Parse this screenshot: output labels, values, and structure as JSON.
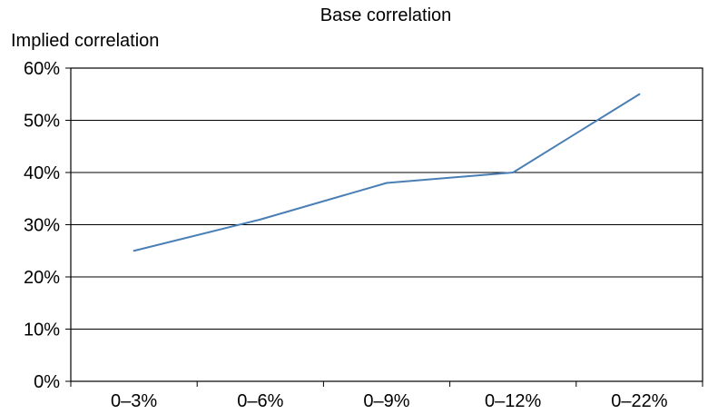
{
  "chart_data": {
    "type": "line",
    "title": "Base correlation",
    "ylabel": "Implied correlation",
    "xlabel": "",
    "categories": [
      "0–3%",
      "0–6%",
      "0–9%",
      "0–12%",
      "0–22%"
    ],
    "series": [
      {
        "values": [
          0.25,
          0.31,
          0.38,
          0.4,
          0.55
        ],
        "color": "#4a7fb5"
      }
    ],
    "ylim": [
      0,
      0.6
    ],
    "yticks": [
      0,
      0.1,
      0.2,
      0.3,
      0.4,
      0.5,
      0.6
    ],
    "ytick_labels": [
      "0%",
      "10%",
      "20%",
      "30%",
      "40%",
      "50%",
      "60%"
    ],
    "grid": true,
    "legend": "none"
  }
}
